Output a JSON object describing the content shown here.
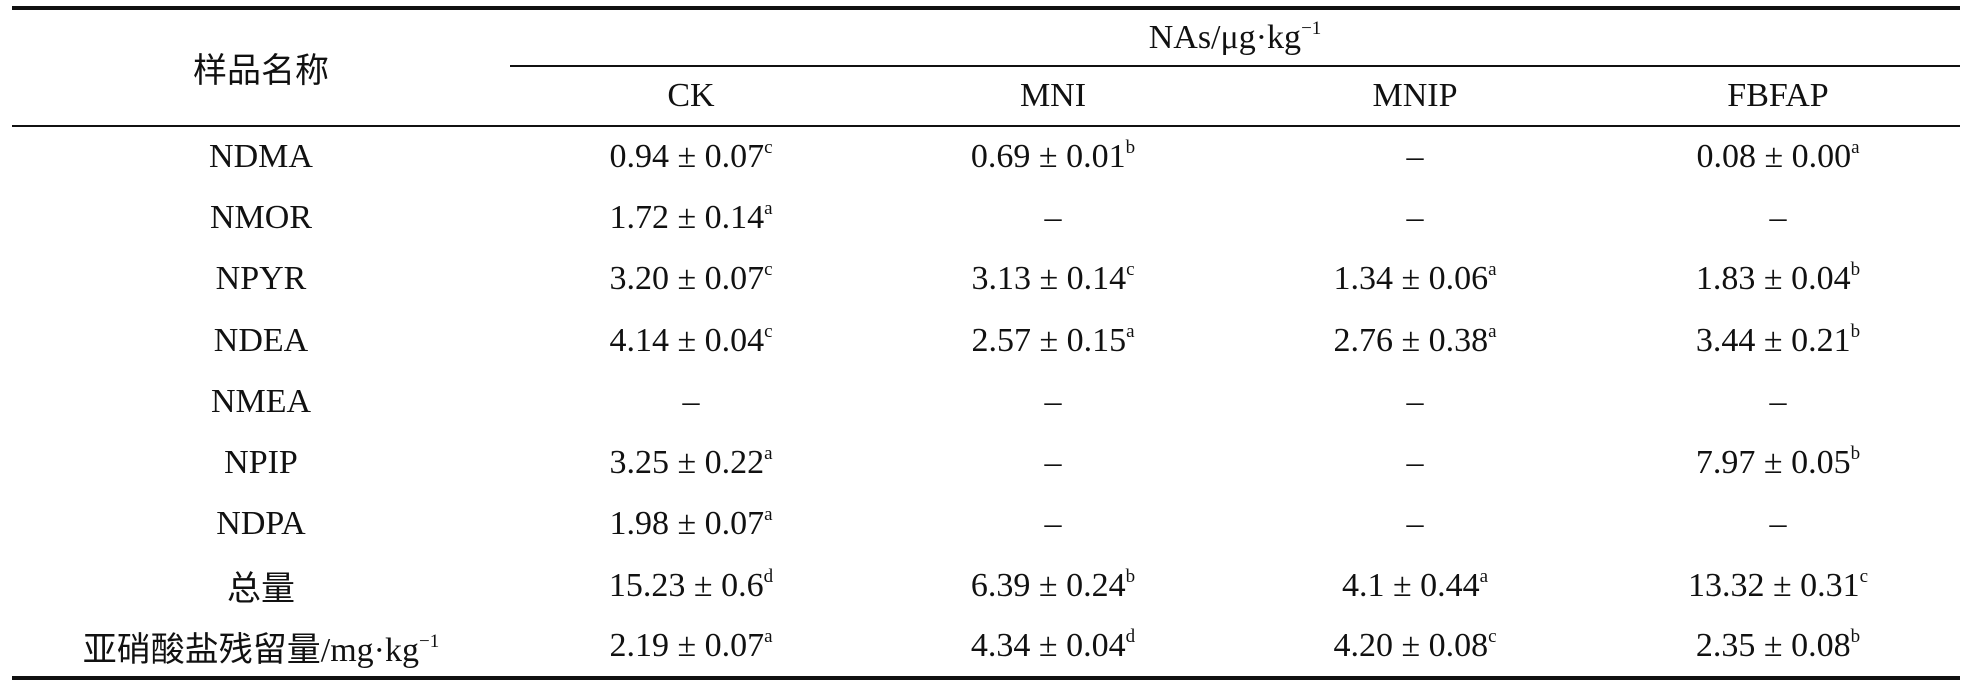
{
  "table": {
    "corner_header": "样品名称",
    "group_header": {
      "text": "NAs/μg·kg",
      "sup": "−1"
    },
    "columns": [
      "CK",
      "MNI",
      "MNIP",
      "FBFAP"
    ],
    "rows": [
      {
        "name": "NDMA",
        "name_sup": "",
        "cells": [
          {
            "value": "0.94 ± 0.07",
            "sig": "c"
          },
          {
            "value": "0.69 ± 0.01",
            "sig": "b"
          },
          {
            "value": "–",
            "sig": ""
          },
          {
            "value": "0.08 ± 0.00",
            "sig": "a"
          }
        ]
      },
      {
        "name": "NMOR",
        "name_sup": "",
        "cells": [
          {
            "value": "1.72 ± 0.14",
            "sig": "a"
          },
          {
            "value": "–",
            "sig": ""
          },
          {
            "value": "–",
            "sig": ""
          },
          {
            "value": "–",
            "sig": ""
          }
        ]
      },
      {
        "name": "NPYR",
        "name_sup": "",
        "cells": [
          {
            "value": "3.20 ± 0.07",
            "sig": "c"
          },
          {
            "value": "3.13 ± 0.14",
            "sig": "c"
          },
          {
            "value": "1.34 ± 0.06",
            "sig": "a"
          },
          {
            "value": "1.83 ± 0.04",
            "sig": "b"
          }
        ]
      },
      {
        "name": "NDEA",
        "name_sup": "",
        "cells": [
          {
            "value": "4.14 ± 0.04",
            "sig": "c"
          },
          {
            "value": "2.57 ± 0.15",
            "sig": "a"
          },
          {
            "value": "2.76 ± 0.38",
            "sig": "a"
          },
          {
            "value": "3.44 ± 0.21",
            "sig": "b"
          }
        ]
      },
      {
        "name": "NMEA",
        "name_sup": "",
        "cells": [
          {
            "value": "–",
            "sig": ""
          },
          {
            "value": "–",
            "sig": ""
          },
          {
            "value": "–",
            "sig": ""
          },
          {
            "value": "–",
            "sig": ""
          }
        ]
      },
      {
        "name": "NPIP",
        "name_sup": "",
        "cells": [
          {
            "value": "3.25 ± 0.22",
            "sig": "a"
          },
          {
            "value": "–",
            "sig": ""
          },
          {
            "value": "–",
            "sig": ""
          },
          {
            "value": "7.97 ± 0.05",
            "sig": "b"
          }
        ]
      },
      {
        "name": "NDPA",
        "name_sup": "",
        "cells": [
          {
            "value": "1.98 ± 0.07",
            "sig": "a"
          },
          {
            "value": "–",
            "sig": ""
          },
          {
            "value": "–",
            "sig": ""
          },
          {
            "value": "–",
            "sig": ""
          }
        ]
      },
      {
        "name": "总量",
        "name_sup": "",
        "cells": [
          {
            "value": "15.23 ± 0.6",
            "sig": "d"
          },
          {
            "value": "6.39 ± 0.24",
            "sig": "b"
          },
          {
            "value": "4.1 ± 0.44",
            "sig": "a"
          },
          {
            "value": "13.32 ± 0.31",
            "sig": "c"
          }
        ]
      },
      {
        "name": "亚硝酸盐残留量/mg·kg",
        "name_sup": "−1",
        "cells": [
          {
            "value": "2.19 ± 0.07",
            "sig": "a"
          },
          {
            "value": "4.34 ± 0.04",
            "sig": "d"
          },
          {
            "value": "4.20 ± 0.08",
            "sig": "c"
          },
          {
            "value": "2.35 ± 0.08",
            "sig": "b"
          }
        ]
      }
    ]
  }
}
